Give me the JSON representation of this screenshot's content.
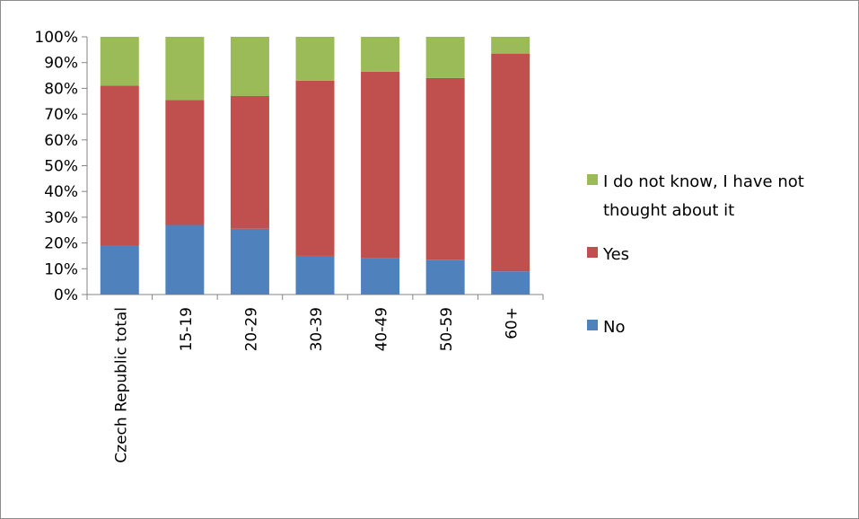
{
  "colors": {
    "no": "#4f81bd",
    "yes": "#c0504d",
    "dontknow": "#9bbb59",
    "axis": "#868686"
  },
  "chart_data": {
    "type": "bar",
    "stacked": true,
    "title": "",
    "xlabel": "",
    "ylabel": "",
    "ylim": [
      0,
      100
    ],
    "y_ticks": [
      "0%",
      "10%",
      "20%",
      "30%",
      "40%",
      "50%",
      "60%",
      "70%",
      "80%",
      "90%",
      "100%"
    ],
    "grid": false,
    "legend_position": "right",
    "categories": [
      "Czech Republic total",
      "15-19",
      "20-29",
      "30-39",
      "40-49",
      "50-59",
      "60+"
    ],
    "series": [
      {
        "name": "No",
        "color": "#4f81bd",
        "values": [
          19,
          27,
          25.5,
          15,
          14,
          13.5,
          9
        ]
      },
      {
        "name": "Yes",
        "color": "#c0504d",
        "values": [
          62,
          48.5,
          51.5,
          68,
          72.5,
          70.5,
          84.5
        ]
      },
      {
        "name": "I do not know, I have not thought about it",
        "color": "#9bbb59",
        "values": [
          19,
          24.5,
          23,
          17,
          13.5,
          16,
          6.5
        ]
      }
    ],
    "legend": {
      "entries": [
        {
          "series_index": 2,
          "lines": [
            "I do not know, I have not",
            "thought about it"
          ]
        },
        {
          "series_index": 1,
          "lines": [
            "Yes"
          ]
        },
        {
          "series_index": 0,
          "lines": [
            "No"
          ]
        }
      ]
    }
  }
}
